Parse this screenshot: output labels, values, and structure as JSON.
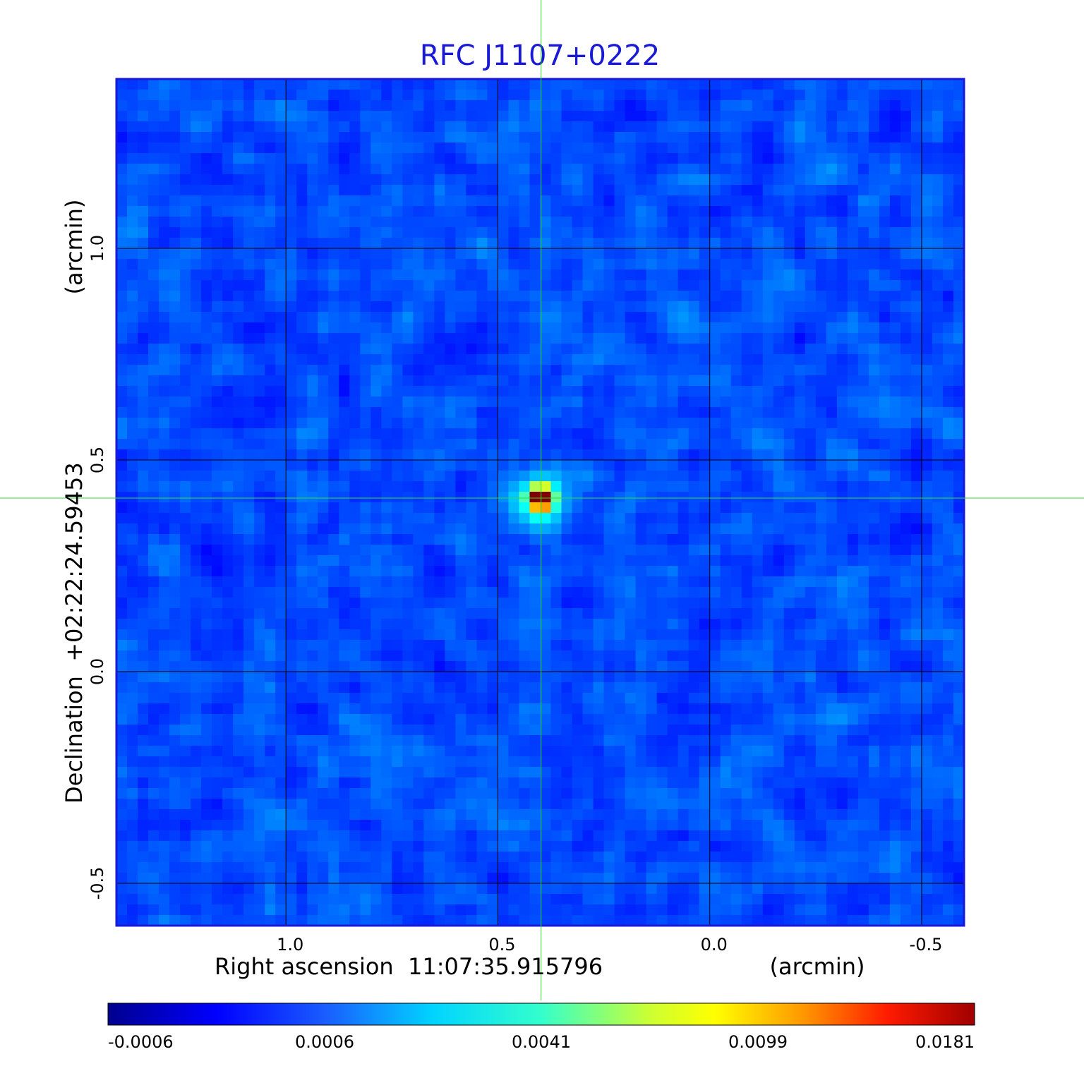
{
  "chart_data": {
    "type": "heatmap",
    "title": "RFC J1107+0222",
    "xlabel": "Right ascension  11:07:35.915796",
    "xunit": "(arcmin)",
    "ylabel": "Declination  +02:22:24.59453",
    "yunit": "(arcmin)",
    "xlim": [
      1.4,
      -0.6
    ],
    "ylim": [
      -0.6,
      1.4
    ],
    "x_axis_inverted": true,
    "x_ticks": [
      1.0,
      0.5,
      0.0,
      -0.5
    ],
    "x_tick_labels": [
      "1.0",
      "0.5",
      "0.0",
      "-0.5"
    ],
    "y_ticks": [
      1.0,
      0.5,
      0.0,
      -0.5
    ],
    "y_tick_labels": [
      "1.0",
      "0.5",
      "0.0",
      "-0.5"
    ],
    "grid": true,
    "crosshair": {
      "x": 0.398,
      "y": 0.41,
      "color": "#33dd33"
    },
    "source_peak": {
      "x": 0.398,
      "y": 0.41,
      "value": 0.0181
    },
    "colormap": "jet",
    "colorbar": {
      "placement": "bottom",
      "tick_labels": [
        "-0.0006",
        "0.0006",
        "0.0041",
        "0.0099",
        "0.0181"
      ],
      "min": -0.0006,
      "max": 0.0181
    }
  }
}
